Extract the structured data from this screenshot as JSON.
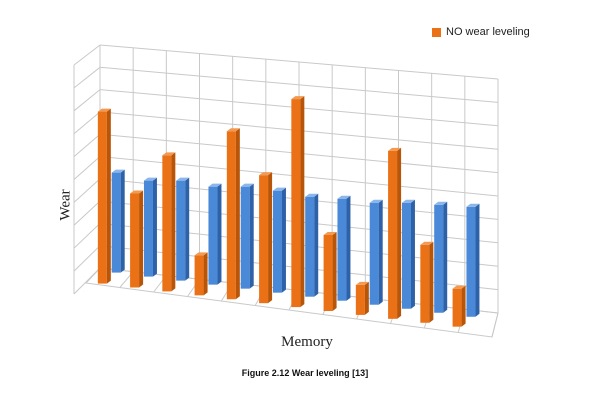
{
  "chart_data": {
    "type": "bar",
    "style": "3d-clustered",
    "categories": [
      "",
      "",
      "",
      "",
      "",
      "",
      "",
      "",
      "",
      "",
      "",
      ""
    ],
    "series": [
      {
        "name": "NO wear leveling",
        "color": "#ea7116",
        "values": [
          8.6,
          4.7,
          6.8,
          2.0,
          8.4,
          6.4,
          10.4,
          3.8,
          1.5,
          8.4,
          3.9,
          1.9
        ]
      },
      {
        "name": "",
        "color": "#4a88d8",
        "values": [
          5.0,
          4.8,
          5.0,
          4.9,
          5.1,
          5.1,
          5.0,
          5.1,
          5.1,
          5.3,
          5.4,
          5.5
        ]
      }
    ],
    "legend": {
      "position": "top-right",
      "visible_entries": [
        "NO wear leveling"
      ]
    },
    "grid": true,
    "xlabel": "Memory",
    "ylabel": "Wear",
    "ylim": [
      0,
      11
    ]
  },
  "caption": "Figure 2.12 Wear leveling [13]"
}
